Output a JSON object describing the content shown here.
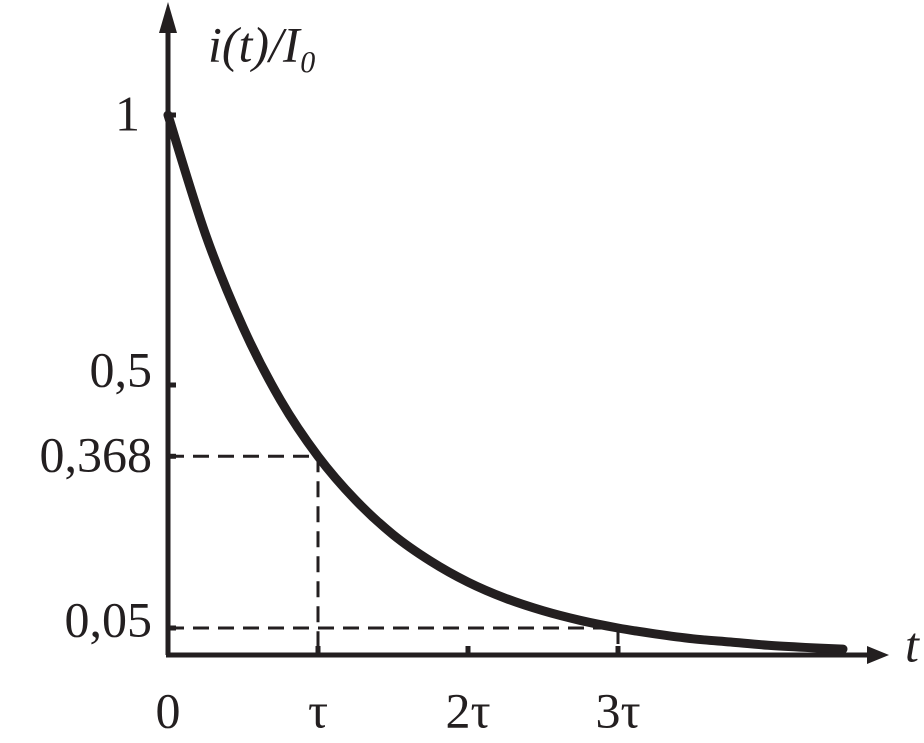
{
  "chart_data": {
    "type": "line",
    "ylabel": "i(t)/I₀",
    "xlabel": "t",
    "x": [
      0,
      0.25,
      0.5,
      0.75,
      1,
      1.25,
      1.5,
      1.75,
      2,
      2.25,
      2.5,
      2.75,
      3,
      3.25,
      3.5,
      3.75,
      4,
      4.25,
      4.5
    ],
    "series": [
      {
        "color": "#231f20",
        "values": [
          1,
          0.779,
          0.607,
          0.472,
          0.368,
          0.287,
          0.223,
          0.174,
          0.135,
          0.105,
          0.082,
          0.064,
          0.05,
          0.039,
          0.03,
          0.024,
          0.018,
          0.014,
          0.011
        ]
      }
    ],
    "xlim": [
      0,
      4.78
    ],
    "ylim": [
      0,
      1.2
    ],
    "xticks": [
      0,
      {
        "value": 1,
        "label": "τ"
      },
      {
        "value": 2,
        "label": "2τ"
      },
      {
        "value": 3,
        "label": "3τ"
      }
    ],
    "yticks": [
      1,
      {
        "value": 0.5,
        "label": "0,5"
      },
      {
        "value": 0.368,
        "label": "0,368"
      },
      {
        "value": 0.05,
        "label": "0,05"
      }
    ],
    "guides": [
      {
        "x": 1,
        "y": 0.368
      },
      {
        "x": 3,
        "y": 0.05
      }
    ]
  }
}
